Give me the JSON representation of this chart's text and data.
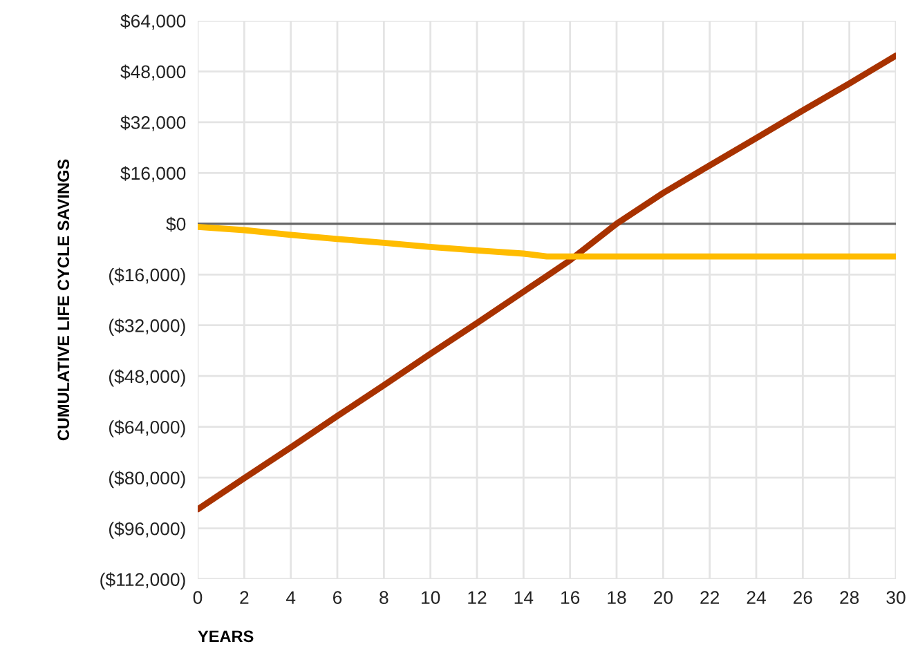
{
  "chart_data": {
    "type": "line",
    "xlabel": "YEARS",
    "ylabel": "CUMULATIVE LIFE CYCLE SAVINGS",
    "x": [
      0,
      2,
      4,
      6,
      8,
      10,
      12,
      14,
      15,
      16,
      18,
      20,
      22,
      24,
      26,
      28,
      30
    ],
    "series": [
      {
        "color": "#a83200",
        "values": [
          -90000,
          -80200,
          -70500,
          -60600,
          -50900,
          -41000,
          -31300,
          -21400,
          -16500,
          -11500,
          0,
          9700,
          18400,
          27000,
          35700,
          44200,
          53000
        ]
      },
      {
        "color": "#ffbc00",
        "values": [
          -1000,
          -2000,
          -3500,
          -4800,
          -6000,
          -7300,
          -8400,
          -9400,
          -10300,
          -10300,
          -10300,
          -10300,
          -10300,
          -10300,
          -10300,
          -10300,
          -10300
        ]
      }
    ],
    "xlim": [
      0,
      30
    ],
    "xticks": [
      0,
      2,
      4,
      6,
      8,
      10,
      12,
      14,
      16,
      18,
      20,
      22,
      24,
      26,
      28,
      30
    ],
    "ylim": [
      -112000,
      64000
    ],
    "yticks": [
      {
        "value": -112000,
        "label": "($112,000)"
      },
      {
        "value": -96000,
        "label": "($96,000)"
      },
      {
        "value": -80000,
        "label": "($80,000)"
      },
      {
        "value": -64000,
        "label": "($64,000)"
      },
      {
        "value": -48000,
        "label": "($48,000)"
      },
      {
        "value": -32000,
        "label": "($32,000)"
      },
      {
        "value": -16000,
        "label": "($16,000)"
      },
      {
        "value": 0,
        "label": "$0"
      },
      {
        "value": 16000,
        "label": "$16,000"
      },
      {
        "value": 32000,
        "label": "$32,000"
      },
      {
        "value": 48000,
        "label": "$48,000"
      },
      {
        "value": 64000,
        "label": "$64,000"
      }
    ],
    "ref_lines": [
      {
        "axis": "y",
        "value": 0,
        "color": "#666666"
      }
    ],
    "grid": true,
    "line_style": "solid",
    "marker": "none"
  }
}
